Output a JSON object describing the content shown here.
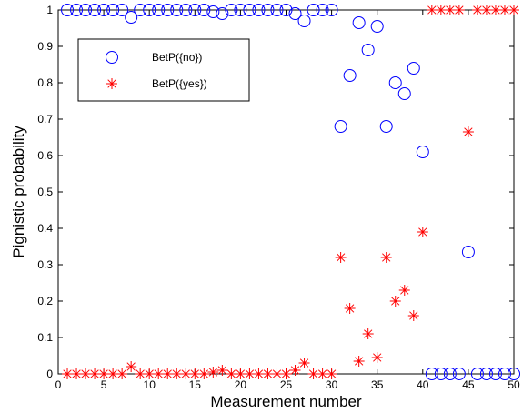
{
  "chart_data": {
    "type": "scatter",
    "title": "",
    "xlabel": "Measurement number",
    "ylabel": "Pignistic probability",
    "xlim": [
      0,
      50
    ],
    "ylim": [
      0,
      1
    ],
    "xticks": [
      0,
      5,
      10,
      15,
      20,
      25,
      30,
      35,
      40,
      45,
      50
    ],
    "xtick_labels": [
      "0",
      "5",
      "10",
      "15",
      "20",
      "25",
      "30",
      "35",
      "40",
      "45",
      "50"
    ],
    "yticks": [
      0,
      0.1,
      0.2,
      0.3,
      0.4,
      0.5,
      0.6,
      0.7,
      0.8,
      0.9,
      1
    ],
    "ytick_labels": [
      "0",
      "0.1",
      "0.2",
      "0.3",
      "0.4",
      "0.5",
      "0.6",
      "0.7",
      "0.8",
      "0.9",
      "1"
    ],
    "grid": false,
    "legend_position": "top-left",
    "x": [
      1,
      2,
      3,
      4,
      5,
      6,
      7,
      8,
      9,
      10,
      11,
      12,
      13,
      14,
      15,
      16,
      17,
      18,
      19,
      20,
      21,
      22,
      23,
      24,
      25,
      26,
      27,
      28,
      29,
      30,
      31,
      32,
      33,
      34,
      35,
      36,
      37,
      38,
      39,
      40,
      41,
      42,
      43,
      44,
      45,
      46,
      47,
      48,
      49,
      50
    ],
    "series": [
      {
        "name": "BetP({no})",
        "marker": "circle",
        "color": "#0000ff",
        "values": [
          1,
          1,
          1,
          1,
          1,
          1,
          1,
          0.98,
          1,
          1,
          1,
          1,
          1,
          1,
          1,
          1,
          0.995,
          0.99,
          1,
          1,
          1,
          1,
          1,
          1,
          1,
          0.99,
          0.97,
          1,
          1,
          1,
          0.68,
          0.82,
          0.965,
          0.89,
          0.955,
          0.68,
          0.8,
          0.77,
          0.84,
          0.61,
          0,
          0,
          0,
          0,
          0.335,
          0,
          0,
          0,
          0,
          0
        ]
      },
      {
        "name": "BetP({yes})",
        "marker": "star",
        "color": "#ff0000",
        "values": [
          0,
          0,
          0,
          0,
          0,
          0,
          0,
          0.02,
          0,
          0,
          0,
          0,
          0,
          0,
          0,
          0,
          0.005,
          0.01,
          0,
          0,
          0,
          0,
          0,
          0,
          0,
          0.01,
          0.03,
          0,
          0,
          0,
          0.32,
          0.18,
          0.035,
          0.11,
          0.045,
          0.32,
          0.2,
          0.23,
          0.16,
          0.39,
          1,
          1,
          1,
          1,
          0.665,
          1,
          1,
          1,
          1,
          1
        ]
      }
    ]
  }
}
